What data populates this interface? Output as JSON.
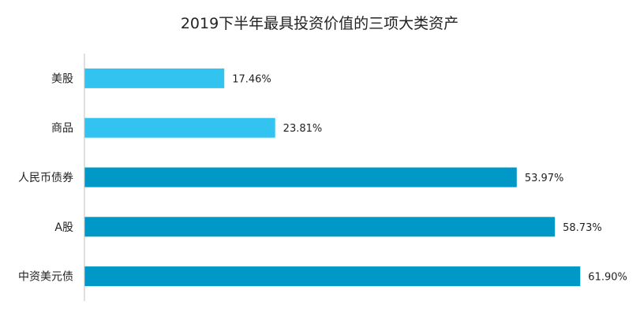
{
  "chart_data": {
    "type": "bar",
    "orientation": "horizontal",
    "title": "2019下半年最具投资价值的三项大类资产",
    "categories": [
      "美股",
      "商品",
      "人民币债券",
      "A股",
      "中资美元债"
    ],
    "values": [
      17.46,
      23.81,
      53.97,
      58.73,
      61.9
    ],
    "value_labels": [
      "17.46%",
      "23.81%",
      "53.97%",
      "58.73%",
      "61.90%"
    ],
    "bar_colors": [
      "#33c3f0",
      "#33c3f0",
      "#0098c7",
      "#0098c7",
      "#0098c7"
    ],
    "xlim": [
      0,
      66.5
    ],
    "grid": false,
    "legend": "none"
  }
}
